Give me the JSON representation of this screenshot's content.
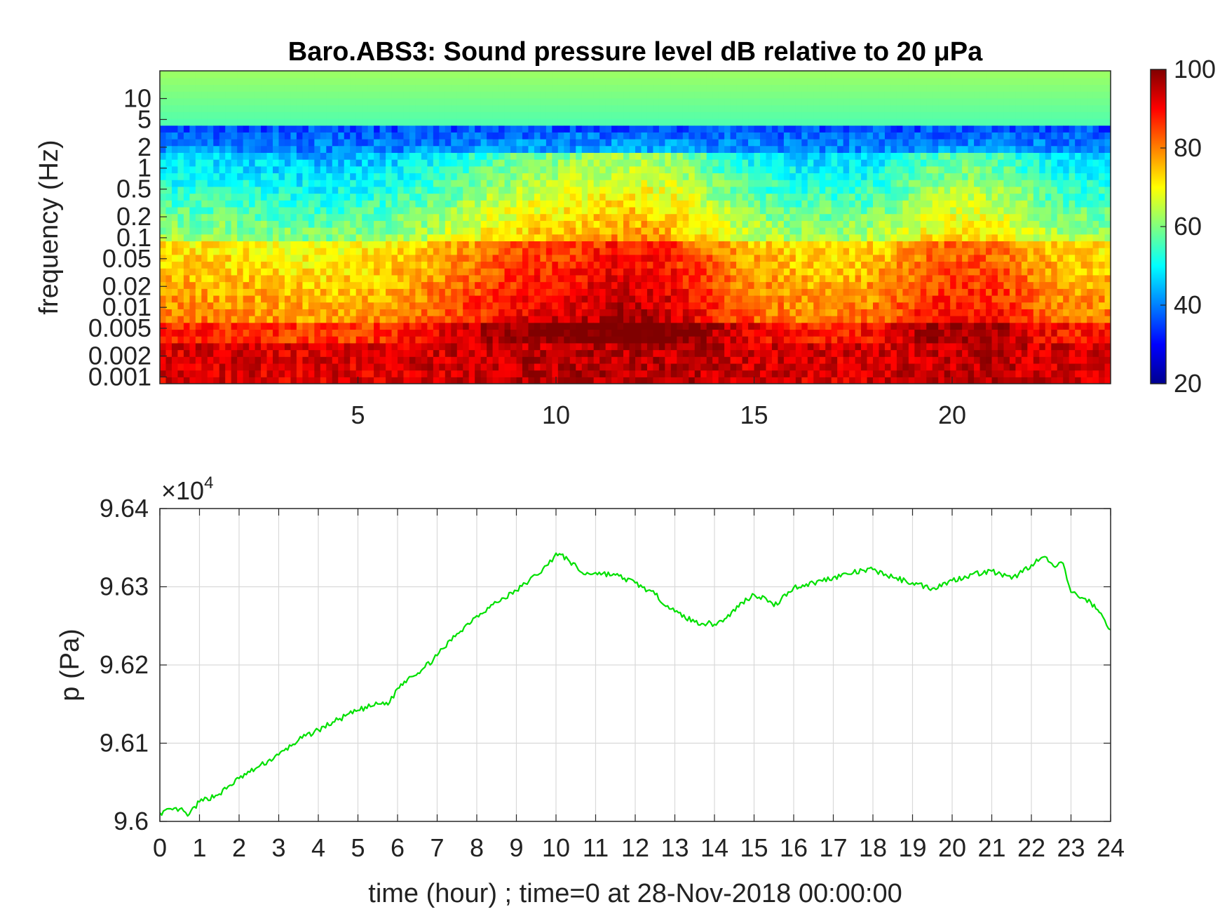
{
  "chart_data": [
    {
      "type": "heatmap",
      "title": "Baro.ABS3: Sound pressure level dB relative to 20 μPa",
      "ylabel": "frequency (Hz)",
      "y_scale": "log",
      "y_ticks": [
        10,
        5,
        2,
        1,
        0.5,
        0.2,
        0.1,
        0.05,
        0.02,
        0.01,
        0.005,
        0.002,
        0.001
      ],
      "y_tick_labels": [
        "10",
        "5",
        "2",
        "1",
        "0.5",
        "0.2",
        "0.1",
        "0.05",
        "0.02",
        "0.01",
        "0.005",
        "0.002",
        "0.001"
      ],
      "ylim": [
        0.0008,
        25
      ],
      "x_ticks": [
        5,
        10,
        15,
        20
      ],
      "xlim": [
        0,
        24
      ],
      "colormap": "jet",
      "colorbar": {
        "ticks": [
          100,
          80,
          60,
          40,
          20
        ],
        "range": [
          20,
          100
        ]
      },
      "grid": false
    },
    {
      "type": "line",
      "ylabel": "p (Pa)",
      "xlabel": "time (hour) ; time=0 at 28-Nov-2018 00:00:00",
      "y_exponent_label": "×10",
      "y_exponent": "4",
      "y_ticks": [
        9.64,
        9.63,
        9.62,
        9.61,
        9.6
      ],
      "ylim": [
        9.6,
        9.64
      ],
      "x_ticks": [
        0,
        1,
        2,
        3,
        4,
        5,
        6,
        7,
        8,
        9,
        10,
        11,
        12,
        13,
        14,
        15,
        16,
        17,
        18,
        19,
        20,
        21,
        22,
        23,
        24
      ],
      "xlim": [
        0,
        24
      ],
      "grid": true,
      "series": [
        {
          "color": "#00e000",
          "x": [
            0,
            0.5,
            0.7,
            1,
            1.5,
            2,
            2.5,
            3,
            3.5,
            4,
            4.5,
            5,
            5.5,
            5.8,
            6,
            6.3,
            6.6,
            7,
            7.5,
            8,
            8.5,
            9,
            9.5,
            9.8,
            10,
            10.3,
            10.7,
            11,
            11.5,
            12,
            12.5,
            13,
            13.5,
            14,
            14.3,
            14.7,
            15,
            15.3,
            15.5,
            16,
            16.5,
            17,
            17.5,
            18,
            18.5,
            19,
            19.5,
            20,
            20.5,
            21,
            21.5,
            22,
            22.3,
            22.6,
            22.8,
            23,
            23.5,
            23.8,
            24
          ],
          "y": [
            9.6011,
            9.6016,
            9.6007,
            9.6025,
            9.6035,
            9.6055,
            9.607,
            9.6085,
            9.6104,
            9.6117,
            9.613,
            9.6142,
            9.615,
            9.6152,
            9.617,
            9.6185,
            9.6193,
            9.6212,
            9.624,
            9.6263,
            9.628,
            9.6295,
            9.6315,
            9.6328,
            9.6343,
            9.6335,
            9.6316,
            9.6318,
            9.6315,
            9.6305,
            9.629,
            9.6268,
            9.6255,
            9.6252,
            9.626,
            9.628,
            9.629,
            9.6285,
            9.6275,
            9.6299,
            9.6305,
            9.6312,
            9.6318,
            9.6322,
            9.6312,
            9.6305,
            9.6298,
            9.6308,
            9.6316,
            9.632,
            9.631,
            9.6328,
            9.6338,
            9.6325,
            9.633,
            9.6293,
            9.628,
            9.6262,
            9.6245
          ]
        }
      ]
    }
  ]
}
